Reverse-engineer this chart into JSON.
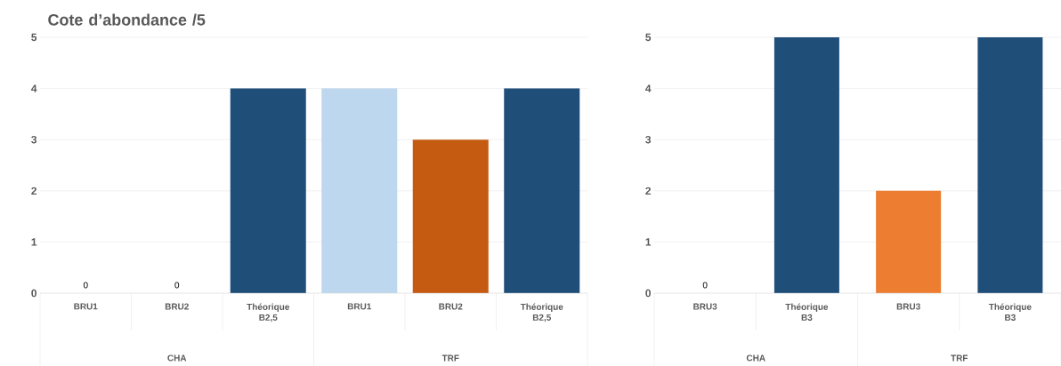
{
  "chart_data": [
    {
      "type": "bar",
      "title": "Cote d’abondance /5",
      "categories": [
        "BRU1",
        "BRU2",
        "Théorique B2,5",
        "BRU1",
        "BRU2",
        "Théorique B2,5"
      ],
      "values": [
        0,
        0,
        4,
        4,
        3,
        4
      ],
      "colors": [
        "#1f4e79",
        "#1f4e79",
        "#1f4e79",
        "#bdd7ee",
        "#c55a11",
        "#1f4e79"
      ],
      "value_labels": [
        "0",
        "0",
        null,
        null,
        null,
        null
      ],
      "ylim": [
        0,
        5
      ],
      "yticks": [
        0,
        1,
        2,
        3,
        4,
        5
      ],
      "grid": "y",
      "annotations": [
        "CHA",
        "TRF"
      ]
    },
    {
      "type": "bar",
      "categories": [
        "BRU3",
        "Théorique B3",
        "BRU3",
        "Théorique B3"
      ],
      "values": [
        0,
        5,
        2,
        5
      ],
      "colors": [
        "#1f4e79",
        "#1f4e79",
        "#ed7d31",
        "#1f4e79"
      ],
      "value_labels": [
        "0",
        null,
        null,
        null
      ],
      "ylim": [
        0,
        5
      ],
      "yticks": [
        0,
        1,
        2,
        3,
        4,
        5
      ],
      "grid": "y",
      "annotations": [
        "CHA",
        "TRF"
      ]
    }
  ]
}
